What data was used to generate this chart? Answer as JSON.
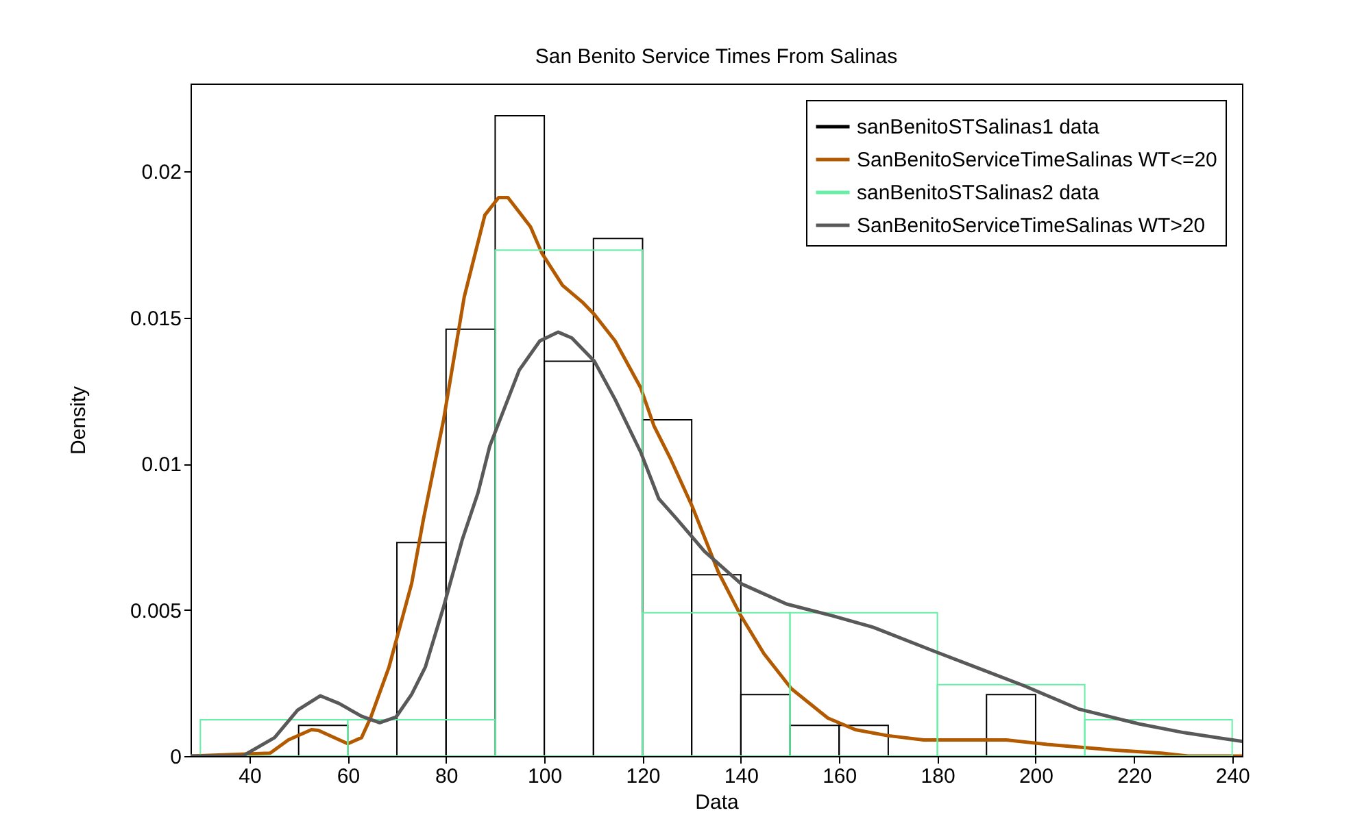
{
  "chart_data": {
    "type": "histogram",
    "title": "San Benito Service Times From Salinas",
    "xlabel": "Data",
    "ylabel": "Density",
    "xlim": [
      28,
      242
    ],
    "xticks": [
      40,
      60,
      80,
      100,
      120,
      140,
      160,
      180,
      200,
      220,
      240
    ],
    "ylim": [
      0,
      0.023
    ],
    "yticks": [
      0,
      0.005,
      0.01,
      0.015,
      0.02
    ],
    "grid": false,
    "legend": "top right",
    "series": [
      {
        "name": "sanBenitoSTSalinas1 data",
        "color": "#000000",
        "bins": [
          50,
          60,
          70,
          80,
          90,
          100,
          110,
          120,
          130,
          140,
          150,
          160,
          170,
          180,
          190,
          200
        ],
        "values": [
          0.00105,
          0,
          0.0073,
          0.0146,
          0.0219,
          0.0135,
          0.0177,
          0.0115,
          0.0062,
          0.0021,
          0.00105,
          0.00105,
          0,
          0,
          0.0021
        ]
      },
      {
        "name": "SanBenitoServiceTimeSalinas WT<=20",
        "type": "line",
        "color": "#b35a00",
        "x": [
          28,
          44.2,
          47.9,
          52.6,
          54,
          60,
          62.8,
          64.7,
          68.4,
          73,
          75.4,
          79.5,
          83.7,
          87.9,
          90.7,
          92.6,
          97.2,
          99.5,
          103.7,
          107.9,
          110.2,
          114.4,
          119.6,
          122.3,
          125.6,
          130.2,
          135.4,
          140,
          144.7,
          150.3,
          157.7,
          163.3,
          169.8,
          177.2,
          194,
          202.3,
          216.3,
          225.6,
          231,
          242
        ],
        "values": [
          0,
          0.0001,
          0.00055,
          0.0009,
          0.00088,
          0.00042,
          0.00063,
          0.00133,
          0.00305,
          0.0059,
          0.0081,
          0.0115,
          0.0157,
          0.0185,
          0.0191,
          0.0191,
          0.0181,
          0.0172,
          0.0161,
          0.0155,
          0.0151,
          0.0142,
          0.0126,
          0.0113,
          0.0102,
          0.0085,
          0.0063,
          0.0048,
          0.0035,
          0.0023,
          0.0013,
          0.0009,
          0.0007,
          0.00055,
          0.00055,
          0.0004,
          0.0002,
          0.0001,
          0,
          0
        ]
      },
      {
        "name": "sanBenitoSTSalinas2 data",
        "color": "#66f0a6",
        "bins": [
          30,
          60,
          90,
          120,
          150,
          180,
          210,
          240
        ],
        "values": [
          0.00124,
          0.00124,
          0.0173,
          0.0049,
          0.0049,
          0.00244,
          0.00124
        ]
      },
      {
        "name": "SanBenitoServiceTimeSalinas WT>20",
        "type": "line",
        "color": "#595959",
        "x": [
          28,
          38.6,
          45.1,
          49.8,
          54.4,
          58.2,
          62.8,
          66.5,
          69.8,
          73,
          75.8,
          79.5,
          83.3,
          86.5,
          88.9,
          94.9,
          99.1,
          102.8,
          105.6,
          110.2,
          114.4,
          119.6,
          123.3,
          127,
          132.6,
          140,
          149.3,
          158.6,
          167,
          179.1,
          188.4,
          197.7,
          208.9,
          221,
          230.2,
          242
        ],
        "values": [
          0,
          0,
          0.00063,
          0.00157,
          0.00206,
          0.0018,
          0.00136,
          0.00114,
          0.00133,
          0.00211,
          0.00305,
          0.0051,
          0.0074,
          0.009,
          0.0106,
          0.0132,
          0.0142,
          0.0145,
          0.0143,
          0.0135,
          0.0122,
          0.0104,
          0.0088,
          0.0081,
          0.007,
          0.0059,
          0.0052,
          0.0048,
          0.0044,
          0.0036,
          0.003,
          0.0024,
          0.0016,
          0.0011,
          0.0008,
          0.0005
        ]
      }
    ]
  }
}
